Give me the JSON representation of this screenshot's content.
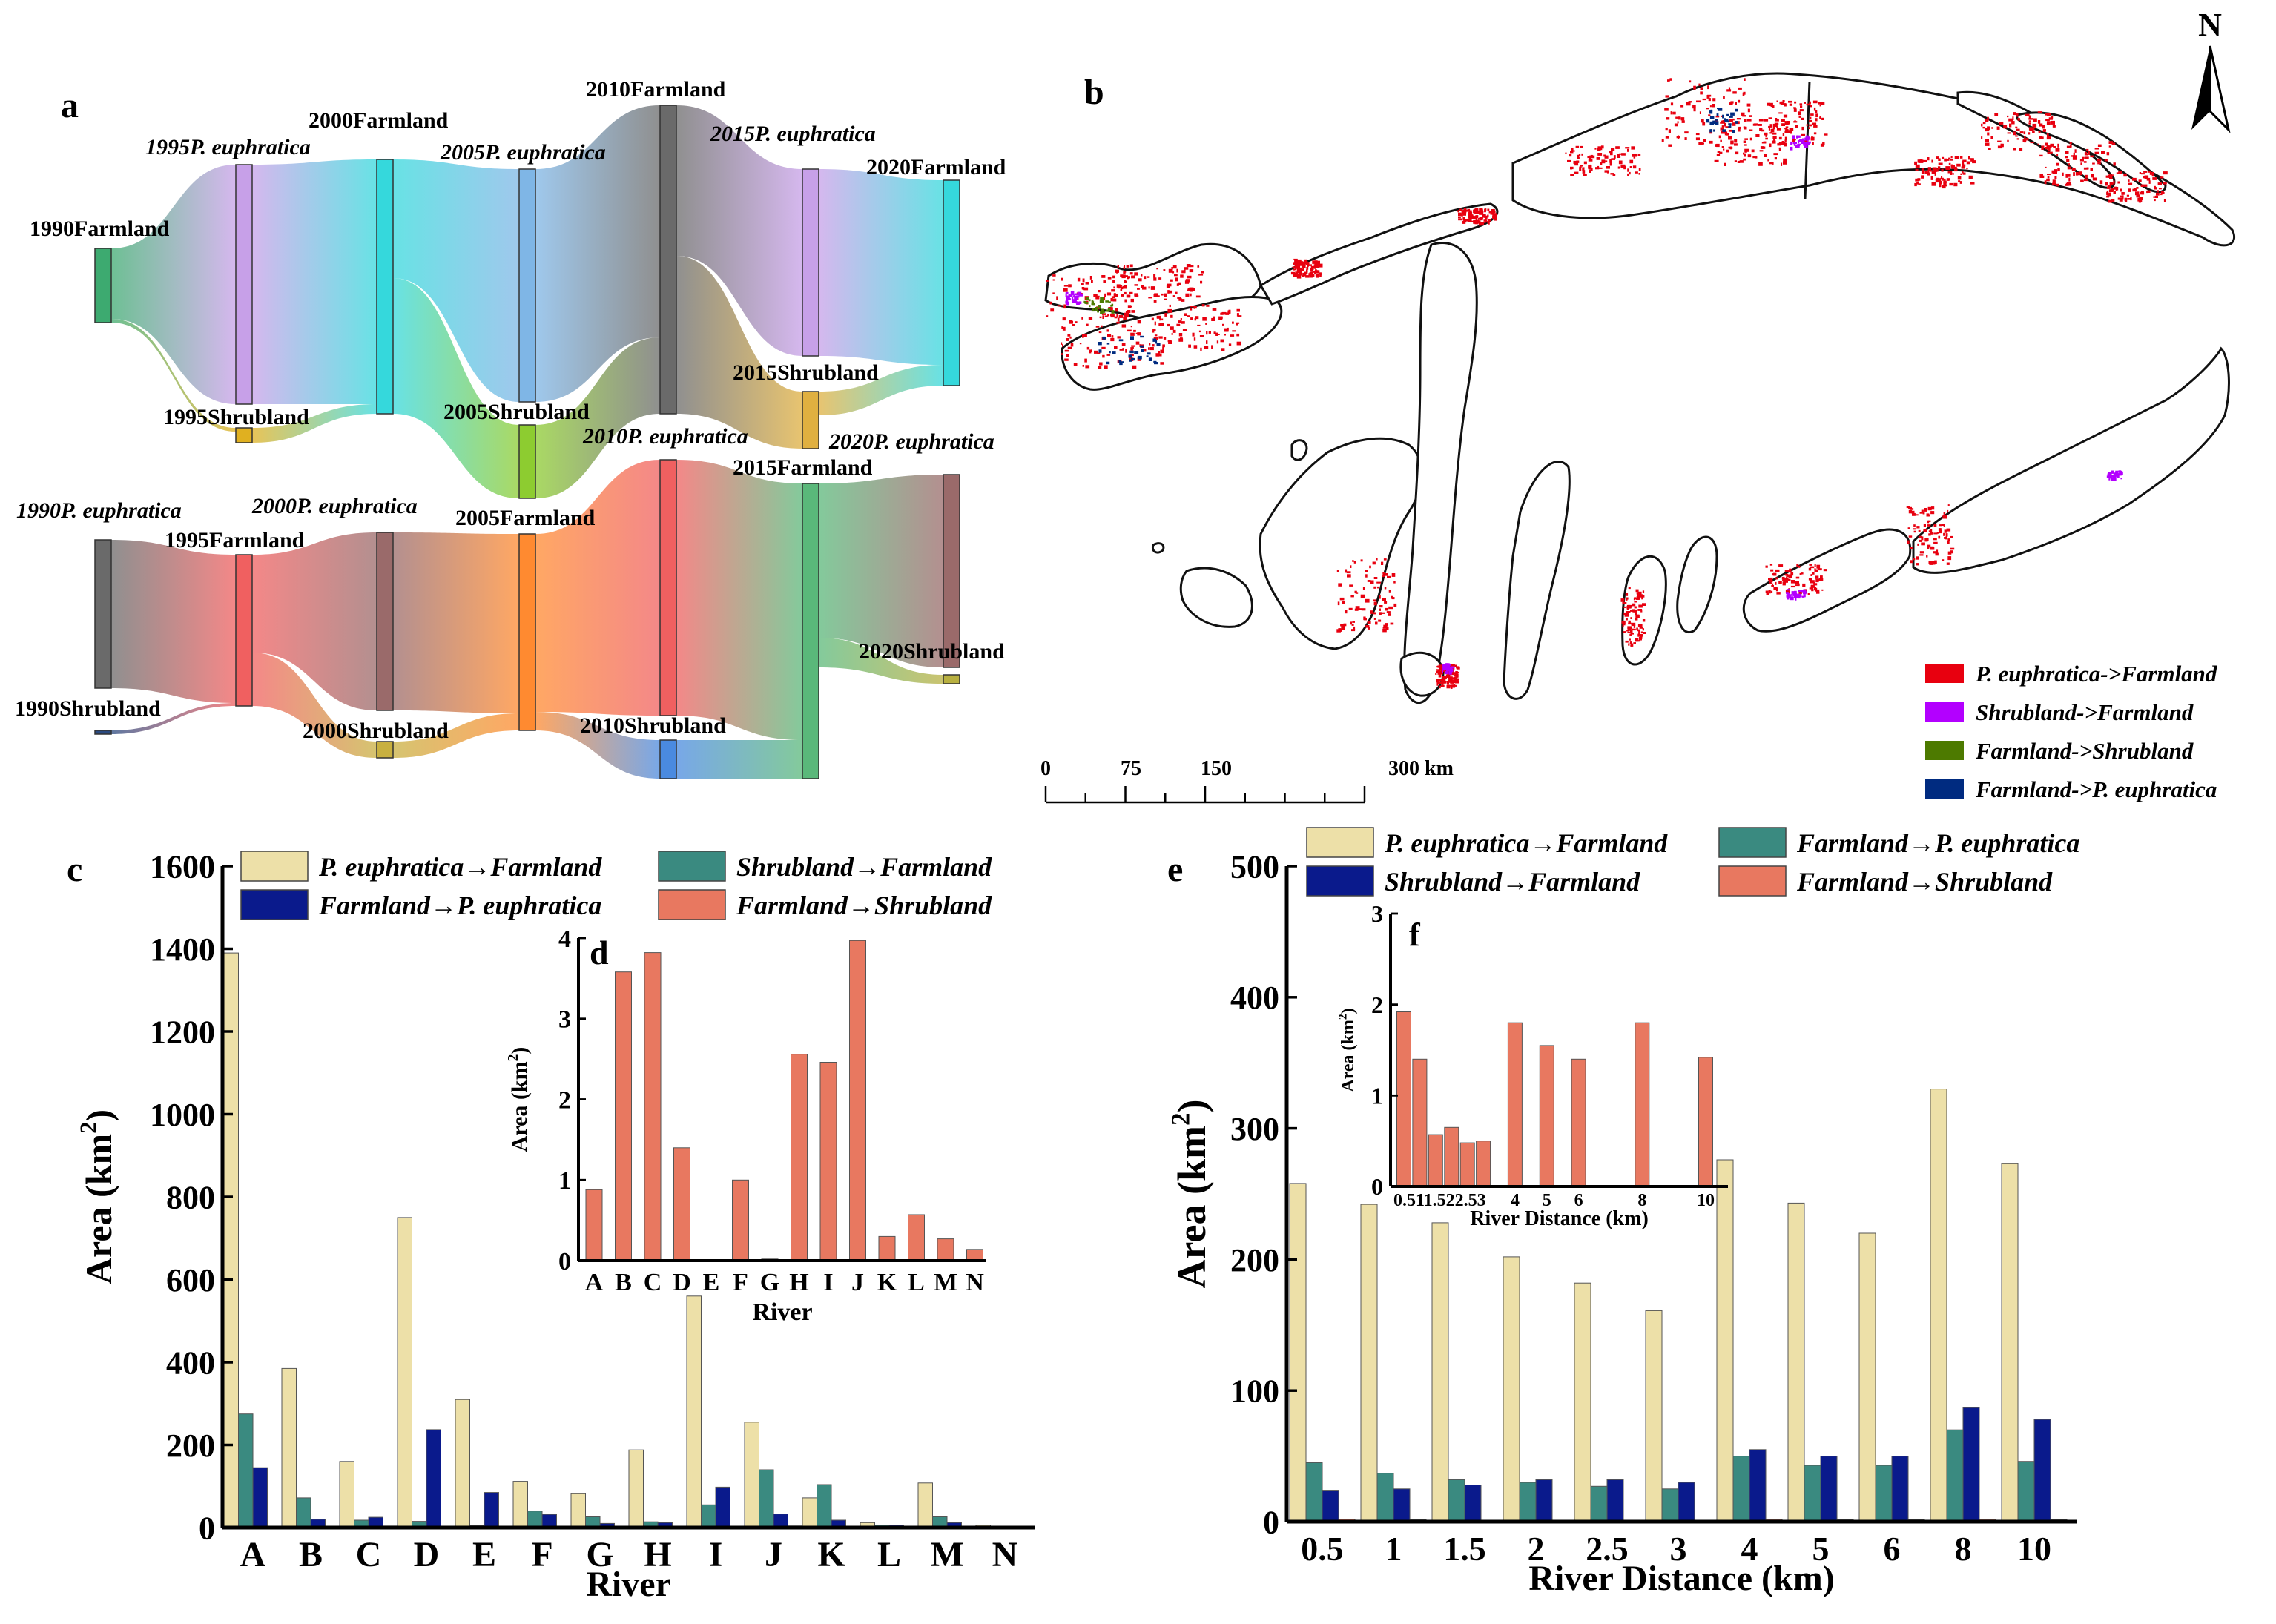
{
  "panels": {
    "a": "a",
    "b": "b",
    "c": "c",
    "d": "d",
    "e": "e",
    "f": "f"
  },
  "sankey": {
    "upper": {
      "nodes": [
        {
          "id": "u1990F",
          "label": "1990Farmland",
          "color": "#3daa70",
          "italic": false
        },
        {
          "id": "u1995P",
          "label": "1995P. euphratica",
          "color": "#c7a0e8",
          "italic": true
        },
        {
          "id": "u1995S",
          "label": "1995Shrubland",
          "color": "#e0b020",
          "italic": false
        },
        {
          "id": "u2000F",
          "label": "2000Farmland",
          "color": "#35d8dc",
          "italic": false
        },
        {
          "id": "u2005P",
          "label": "2005P. euphratica",
          "color": "#7fb6e6",
          "italic": true
        },
        {
          "id": "u2005S",
          "label": "2005Shrubland",
          "color": "#8dcc30",
          "italic": false
        },
        {
          "id": "u2010F",
          "label": "2010Farmland",
          "color": "#6a6a6a",
          "italic": false
        },
        {
          "id": "u2015P",
          "label": "2015P. euphratica",
          "color": "#c7a0e8",
          "italic": true
        },
        {
          "id": "u2015S",
          "label": "2015Shrubland",
          "color": "#e0b040",
          "italic": false
        },
        {
          "id": "u2020F",
          "label": "2020Farmland",
          "color": "#35d8dc",
          "italic": false
        }
      ]
    },
    "lower": {
      "nodes": [
        {
          "id": "l1990P",
          "label": "1990P. euphratica",
          "color": "#6a6a6a",
          "italic": true
        },
        {
          "id": "l1990S",
          "label": "1990Shrubland",
          "color": "#2a4a80",
          "italic": false
        },
        {
          "id": "l1995F",
          "label": "1995Farmland",
          "color": "#f06060",
          "italic": false
        },
        {
          "id": "l2000P",
          "label": "2000P. euphratica",
          "color": "#9a6a6a",
          "italic": true
        },
        {
          "id": "l2000S",
          "label": "2000Shrubland",
          "color": "#c8b040",
          "italic": false
        },
        {
          "id": "l2005F",
          "label": "2005Farmland",
          "color": "#ff8a30",
          "italic": false
        },
        {
          "id": "l2010P",
          "label": "2010P. euphratica",
          "color": "#f06060",
          "italic": true
        },
        {
          "id": "l2010S",
          "label": "2010Shrubland",
          "color": "#4a8ae0",
          "italic": false
        },
        {
          "id": "l2015F",
          "label": "2015Farmland",
          "color": "#5ab87a",
          "italic": false
        },
        {
          "id": "l2020P",
          "label": "2020P. euphratica",
          "color": "#9a6a6a",
          "italic": true
        },
        {
          "id": "l2020S",
          "label": "2020Shrubland",
          "color": "#b8b040",
          "italic": false
        }
      ]
    }
  },
  "map": {
    "north": "N",
    "legend": [
      {
        "label": "P. euphratica->Farmland",
        "color": "#e8000f"
      },
      {
        "label": "Shrubland->Farmland",
        "color": "#b300ff"
      },
      {
        "label": "Farmland->Shrubland",
        "color": "#4d7a00"
      },
      {
        "label": "Farmland->P. euphratica",
        "color": "#002b80"
      }
    ],
    "scale": {
      "ticks": [
        "0",
        "75",
        "150",
        "300 km"
      ]
    }
  },
  "chart_data": [
    {
      "panel": "c",
      "type": "bar",
      "xlabel": "River",
      "ylabel": "Area (km",
      "ylabel_sup": "2",
      "ylabel_close": ")",
      "ylim": [
        0,
        1600
      ],
      "yticks": [
        0,
        200,
        400,
        600,
        800,
        1000,
        1200,
        1400,
        1600
      ],
      "categories": [
        "A",
        "B",
        "C",
        "D",
        "E",
        "F",
        "G",
        "H",
        "I",
        "J",
        "K",
        "L",
        "M",
        "N"
      ],
      "series": [
        {
          "name": "P. euphratica→Farmland",
          "color": "#ede0a8",
          "values": [
            1390,
            385,
            160,
            750,
            310,
            112,
            82,
            188,
            560,
            255,
            72,
            12,
            108,
            6
          ]
        },
        {
          "name": "Shrubland→Farmland",
          "color": "#3a8a80",
          "values": [
            275,
            72,
            18,
            15,
            5,
            40,
            26,
            14,
            55,
            140,
            104,
            6,
            26,
            3
          ]
        },
        {
          "name": "Farmland→P. euphratica",
          "color": "#0a1a8c",
          "values": [
            145,
            20,
            25,
            237,
            85,
            32,
            10,
            12,
            98,
            33,
            18,
            6,
            12,
            2
          ]
        },
        {
          "name": "Farmland→Shrubland",
          "color": "#e87860",
          "values": [
            1,
            3.6,
            3.8,
            1.4,
            0,
            1,
            0,
            2.6,
            2.5,
            4,
            0.3,
            0.6,
            0.3,
            0.1
          ]
        }
      ]
    },
    {
      "panel": "d",
      "type": "bar",
      "xlabel": "River",
      "ylabel": "Area (km",
      "ylabel_sup": "2",
      "ylabel_close": ")",
      "ylim": [
        0,
        4
      ],
      "yticks": [
        0,
        1,
        2,
        3,
        4
      ],
      "categories": [
        "A",
        "B",
        "C",
        "D",
        "E",
        "F",
        "G",
        "H",
        "I",
        "J",
        "K",
        "L",
        "M",
        "N"
      ],
      "series": [
        {
          "name": "Farmland→Shrubland",
          "color": "#e87860",
          "values": [
            0.88,
            3.58,
            3.82,
            1.4,
            0,
            1.0,
            0.02,
            2.56,
            2.46,
            3.97,
            0.3,
            0.57,
            0.27,
            0.14
          ]
        }
      ]
    },
    {
      "panel": "e",
      "type": "bar",
      "xlabel": "River Distance (km)",
      "ylabel": "Area (km",
      "ylabel_sup": "2",
      "ylabel_close": ")",
      "ylim": [
        0,
        500
      ],
      "yticks": [
        0,
        100,
        200,
        300,
        400,
        500
      ],
      "categories": [
        "0.5",
        "1",
        "1.5",
        "2",
        "2.5",
        "3",
        "4",
        "5",
        "6",
        "8",
        "10"
      ],
      "series": [
        {
          "name": "P. euphratica→Farmland",
          "color": "#ede0a8",
          "values": [
            258,
            242,
            228,
            202,
            182,
            161,
            276,
            243,
            220,
            330,
            273
          ]
        },
        {
          "name": "Farmland→P. euphratica",
          "color": "#3a8a80",
          "values": [
            45,
            37,
            32,
            30,
            27,
            25,
            50,
            43,
            43,
            70,
            46
          ]
        },
        {
          "name": "Shrubland→Farmland",
          "color": "#0a1a8c",
          "values": [
            24,
            25,
            28,
            32,
            32,
            30,
            55,
            50,
            50,
            87,
            78
          ]
        },
        {
          "name": "Farmland→Shrubland",
          "color": "#e87860",
          "values": [
            1.9,
            1.4,
            0.57,
            0.65,
            0.48,
            0.5,
            1.8,
            1.55,
            1.4,
            1.8,
            1.42
          ]
        }
      ]
    },
    {
      "panel": "f",
      "type": "bar",
      "xlabel": "River Distance (km)",
      "ylabel": "Area (km",
      "ylabel_sup": "2",
      "ylabel_close": ")",
      "ylim": [
        0,
        3
      ],
      "yticks": [
        0,
        1,
        2,
        3
      ],
      "categories": [
        "0.5",
        "1",
        "1.5",
        "2",
        "2.5",
        "3",
        "4",
        "5",
        "6",
        "8",
        "10"
      ],
      "x": [
        0.5,
        1,
        1.5,
        2,
        2.5,
        3,
        4,
        5,
        6,
        8,
        10
      ],
      "tick_text": "0.511.522.53",
      "series": [
        {
          "name": "Farmland→Shrubland",
          "color": "#e87860",
          "values": [
            1.92,
            1.4,
            0.57,
            0.65,
            0.48,
            0.5,
            1.8,
            1.55,
            1.4,
            1.8,
            1.42
          ]
        }
      ]
    }
  ]
}
